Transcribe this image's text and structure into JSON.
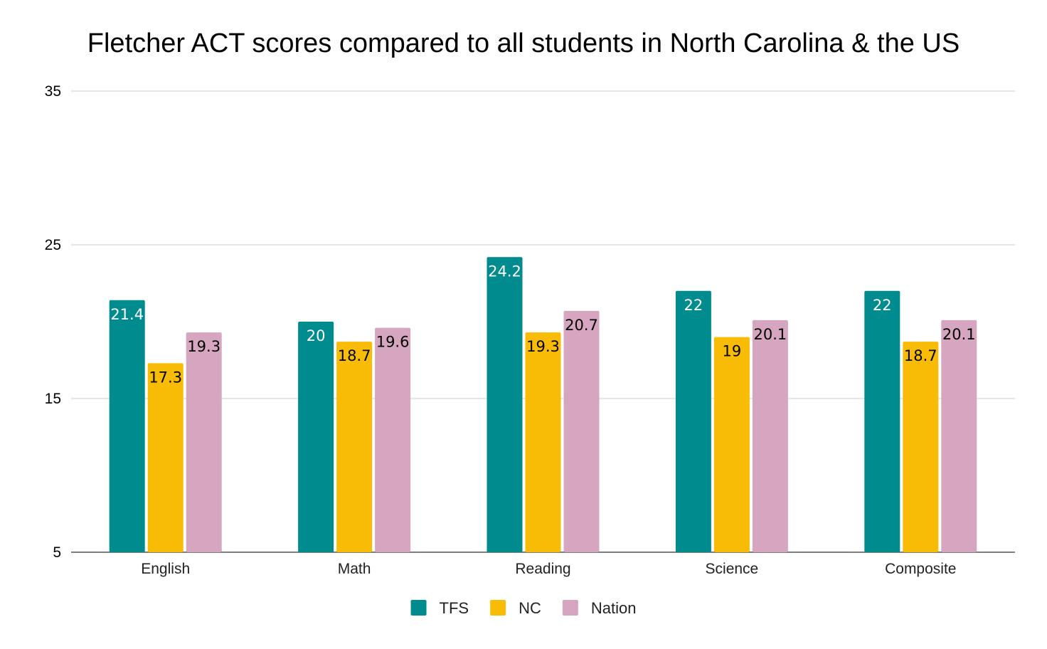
{
  "chart_data": {
    "type": "bar",
    "title": "Fletcher ACT scores compared to all students in North Carolina & the US",
    "xlabel": "",
    "ylabel": "",
    "categories": [
      "English",
      "Math",
      "Reading",
      "Science",
      "Composite"
    ],
    "series": [
      {
        "name": "TFS",
        "color": "#008b8f",
        "label_color": "#ffffff",
        "values": [
          21.4,
          20,
          24.2,
          22,
          22
        ]
      },
      {
        "name": "NC",
        "color": "#f9bc06",
        "label_color": "#000000",
        "values": [
          17.3,
          18.7,
          19.3,
          19,
          18.7
        ]
      },
      {
        "name": "Nation",
        "color": "#d6a6c0",
        "label_color": "#000000",
        "values": [
          19.3,
          19.6,
          20.7,
          20.1,
          20.1
        ]
      }
    ],
    "ylim": [
      5,
      35
    ],
    "yticks": [
      5,
      15,
      25,
      35
    ],
    "grid": true,
    "legend_position": "bottom-center",
    "data_labels": true
  }
}
